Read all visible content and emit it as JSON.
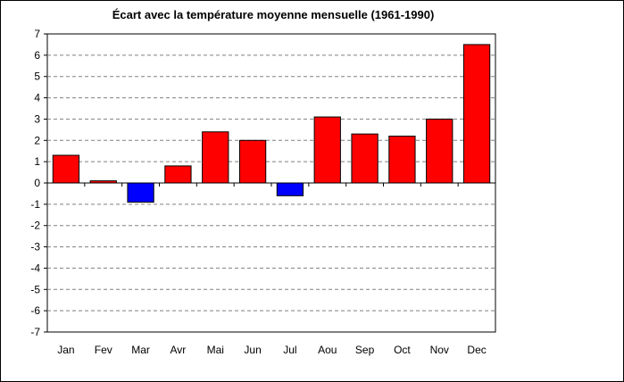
{
  "chart_data": {
    "type": "bar",
    "title": "Écart avec la température moyenne mensuelle (1961-1990)",
    "xlabel": "",
    "ylabel": "",
    "categories": [
      "Jan",
      "Fev",
      "Mar",
      "Avr",
      "Mai",
      "Jun",
      "Jul",
      "Aou",
      "Sep",
      "Oct",
      "Nov",
      "Dec"
    ],
    "values": [
      1.3,
      0.1,
      -0.9,
      0.8,
      2.4,
      2.0,
      -0.6,
      3.1,
      2.3,
      2.2,
      3.0,
      6.5
    ],
    "ylim": [
      -7,
      7
    ],
    "yticks": [
      "-7",
      "-6",
      "-5",
      "-4",
      "-3",
      "-2",
      "-1",
      "0",
      "1",
      "2",
      "3",
      "4",
      "5",
      "6",
      "7"
    ],
    "grid": true,
    "legend": "none",
    "colors": {
      "positive": "#ff0000",
      "negative": "#0000ff",
      "grid": "#808080",
      "axis": "#000000"
    }
  }
}
